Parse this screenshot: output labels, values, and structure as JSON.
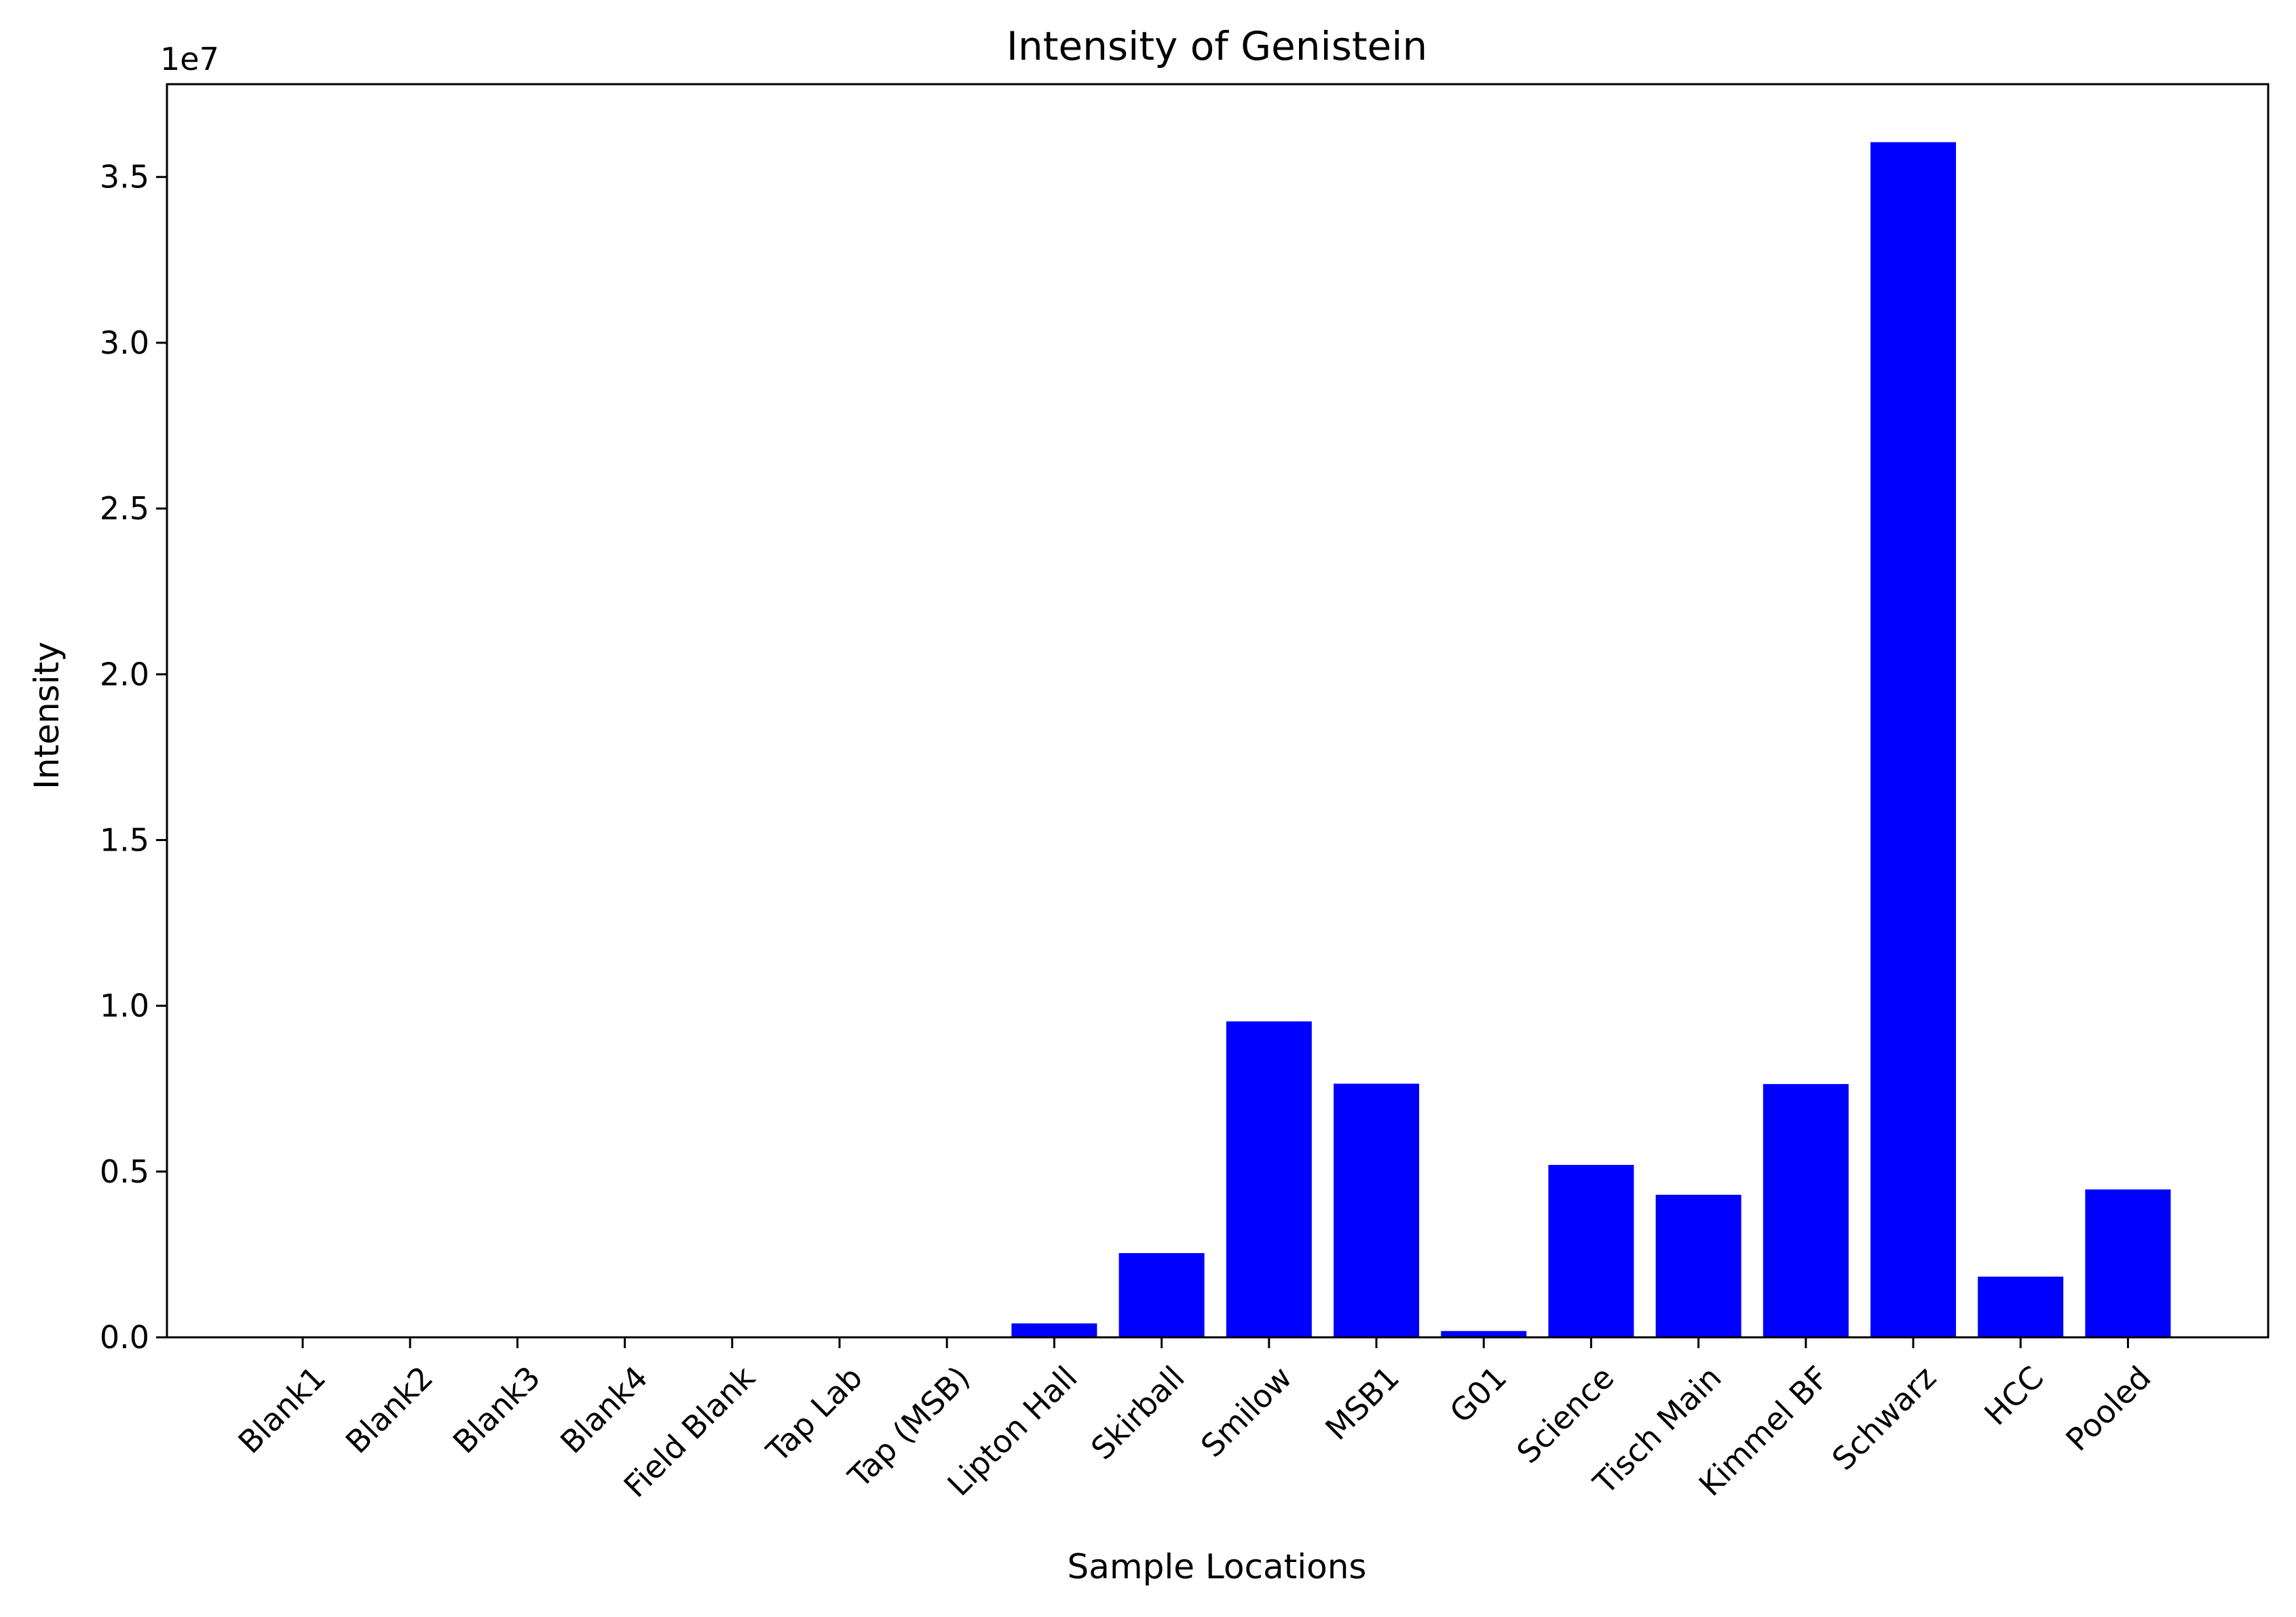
{
  "chart_data": {
    "type": "bar",
    "title": "Intensity of Genistein",
    "xlabel": "Sample Locations",
    "ylabel": "Intensity",
    "y_offset_label": "1e7",
    "y_multiplier": 10000000,
    "ylim": [
      0,
      37800000
    ],
    "y_ticks": [
      0,
      5000000,
      10000000,
      15000000,
      20000000,
      25000000,
      30000000,
      35000000
    ],
    "y_tick_labels": [
      "0.0",
      "0.5",
      "1.0",
      "1.5",
      "2.0",
      "2.5",
      "3.0",
      "3.5"
    ],
    "grid": false,
    "bar_color": "#0000ff",
    "categories": [
      "Blank1",
      "Blank2",
      "Blank3",
      "Blank4",
      "Field Blank",
      "Tap Lab",
      "Tap (MSB)",
      "Lipton Hall",
      "Skirball",
      "Smilow",
      "MSB1",
      "G01",
      "Science",
      "Tisch Main",
      "Kimmel BF",
      "Schwarz",
      "HCC",
      "Pooled"
    ],
    "values": [
      0,
      0,
      0,
      0,
      0,
      0,
      0,
      420000,
      2540000,
      9530000,
      7650000,
      190000,
      5200000,
      4300000,
      7640000,
      36050000,
      1830000,
      4460000
    ]
  }
}
